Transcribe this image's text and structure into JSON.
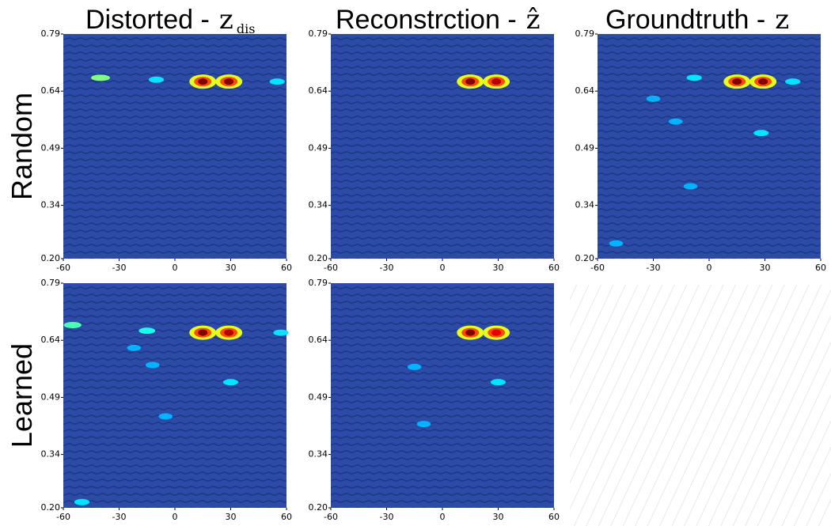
{
  "column_titles": [
    {
      "text": "Distorted -",
      "symbol": "z",
      "subscript": "dis"
    },
    {
      "text": "Reconstrction -",
      "symbol": "ẑ"
    },
    {
      "text": "Groundtruth -",
      "symbol": "z"
    }
  ],
  "row_labels": [
    "Random",
    "Learned"
  ],
  "chart_data": [
    {
      "type": "heatmap",
      "xlim": [
        -60,
        60
      ],
      "ylim": [
        0.2,
        0.79
      ],
      "xticks": [
        -60,
        -30,
        0,
        30,
        60
      ],
      "yticks": [
        {
          "value": 0.2,
          "label": "0.20"
        },
        0.34,
        0.49,
        0.64,
        0.79
      ],
      "x": [
        15,
        29,
        -40,
        -10,
        55
      ],
      "y": [
        0.665,
        0.665,
        0.675,
        0.67,
        0.665
      ],
      "values": [
        1.0,
        1.0,
        0.5,
        0.35,
        0.35
      ]
    },
    {
      "type": "heatmap",
      "xlim": [
        -60,
        60
      ],
      "ylim": [
        0.2,
        0.79
      ],
      "xticks": [
        -60,
        -30,
        0,
        30,
        60
      ],
      "yticks": [
        {
          "value": 0.2,
          "label": "0.20"
        },
        0.34,
        0.49,
        0.64,
        0.79
      ],
      "x": [
        15,
        29
      ],
      "y": [
        0.665,
        0.665
      ],
      "values": [
        1.0,
        0.95
      ]
    },
    {
      "type": "heatmap",
      "xlim": [
        -60,
        60
      ],
      "ylim": [
        0.2,
        0.79
      ],
      "xticks": [
        -60,
        -30,
        0,
        30,
        60
      ],
      "yticks": [
        {
          "value": 0.2,
          "label": "0.20"
        },
        0.34,
        0.49,
        0.64,
        0.79
      ],
      "x": [
        15,
        29,
        -8,
        45,
        -30,
        -18,
        28,
        -10,
        -50
      ],
      "y": [
        0.665,
        0.665,
        0.675,
        0.665,
        0.62,
        0.56,
        0.53,
        0.39,
        0.24
      ],
      "values": [
        1.0,
        1.0,
        0.35,
        0.35,
        0.3,
        0.3,
        0.35,
        0.3,
        0.3
      ]
    },
    {
      "type": "heatmap",
      "xlim": [
        -60,
        60
      ],
      "ylim": [
        0.2,
        0.79
      ],
      "xticks": [
        -60,
        -30,
        0,
        30,
        60
      ],
      "yticks": [
        {
          "value": 0.2,
          "label": "0.20"
        },
        0.34,
        0.49,
        0.64,
        0.79
      ],
      "x": [
        15,
        29,
        -55,
        -15,
        57,
        -22,
        -12,
        30,
        -5,
        -50
      ],
      "y": [
        0.66,
        0.66,
        0.68,
        0.665,
        0.66,
        0.62,
        0.575,
        0.53,
        0.44,
        0.215
      ],
      "values": [
        1.0,
        0.95,
        0.45,
        0.4,
        0.35,
        0.3,
        0.3,
        0.35,
        0.3,
        0.35
      ]
    },
    {
      "type": "heatmap",
      "xlim": [
        -60,
        60
      ],
      "ylim": [
        0.2,
        0.79
      ],
      "xticks": [
        -60,
        -30,
        0,
        30,
        60
      ],
      "yticks": [
        {
          "value": 0.2,
          "label": "0.20"
        },
        0.34,
        0.49,
        0.64,
        0.79
      ],
      "x": [
        15,
        29,
        -15,
        30,
        -10
      ],
      "y": [
        0.66,
        0.66,
        0.57,
        0.53,
        0.42
      ],
      "values": [
        1.0,
        0.9,
        0.3,
        0.35,
        0.3
      ]
    }
  ]
}
